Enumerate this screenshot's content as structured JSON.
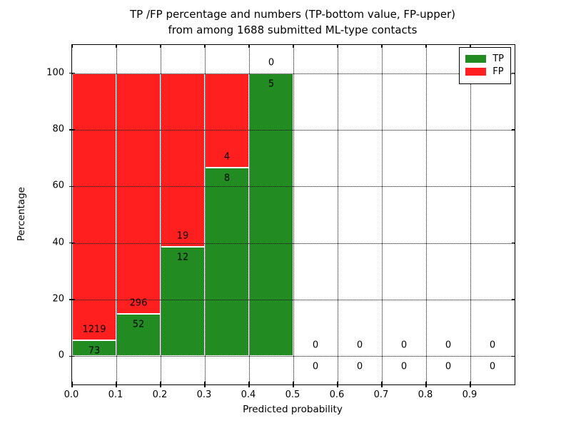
{
  "title": {
    "line1": "TP /FP percentage and numbers (TP-bottom value, FP-upper)",
    "line2": "from among 1688 submitted ML-type contacts"
  },
  "chart_data": {
    "type": "bar",
    "stacked": true,
    "title": "TP /FP percentage and numbers (TP-bottom value, FP-upper) from among 1688 submitted ML-type contacts",
    "xlabel": "Predicted probability",
    "ylabel": "Percentage",
    "xlim": [
      0.0,
      1.0
    ],
    "ylim": [
      -10,
      110
    ],
    "grid": "dotted",
    "legend_position": "upper right",
    "xticks": [
      "0.0",
      "0.1",
      "0.2",
      "0.3",
      "0.4",
      "0.5",
      "0.6",
      "0.7",
      "0.8",
      "0.9"
    ],
    "xtick_values": [
      0.0,
      0.1,
      0.2,
      0.3,
      0.4,
      0.5,
      0.6,
      0.7,
      0.8,
      0.9
    ],
    "yticks": [
      "0",
      "20",
      "40",
      "60",
      "80",
      "100"
    ],
    "ytick_values": [
      0,
      20,
      40,
      60,
      80,
      100
    ],
    "series": [
      {
        "name": "TP",
        "color": "#228b22",
        "values": [
          73,
          52,
          12,
          8,
          5,
          0,
          0,
          0,
          0,
          0
        ]
      },
      {
        "name": "FP",
        "color": "#ff1f1f",
        "values": [
          1219,
          296,
          19,
          4,
          0,
          0,
          0,
          0,
          0,
          0
        ]
      }
    ],
    "bins": [
      {
        "x0": 0.0,
        "x1": 0.1,
        "tp": 73,
        "fp": 1219,
        "tp_pct": 5.65
      },
      {
        "x0": 0.1,
        "x1": 0.2,
        "tp": 52,
        "fp": 296,
        "tp_pct": 14.94
      },
      {
        "x0": 0.2,
        "x1": 0.3,
        "tp": 12,
        "fp": 19,
        "tp_pct": 38.71
      },
      {
        "x0": 0.3,
        "x1": 0.4,
        "tp": 8,
        "fp": 4,
        "tp_pct": 66.67
      },
      {
        "x0": 0.4,
        "x1": 0.5,
        "tp": 5,
        "fp": 0,
        "tp_pct": 100.0
      },
      {
        "x0": 0.5,
        "x1": 0.6,
        "tp": 0,
        "fp": 0,
        "tp_pct": 0
      },
      {
        "x0": 0.6,
        "x1": 0.7,
        "tp": 0,
        "fp": 0,
        "tp_pct": 0
      },
      {
        "x0": 0.7,
        "x1": 0.8,
        "tp": 0,
        "fp": 0,
        "tp_pct": 0
      },
      {
        "x0": 0.8,
        "x1": 0.9,
        "tp": 0,
        "fp": 0,
        "tp_pct": 0
      },
      {
        "x0": 0.9,
        "x1": 1.0,
        "tp": 0,
        "fp": 0,
        "tp_pct": 0
      }
    ],
    "legend": [
      {
        "label": "TP",
        "color": "#228b22"
      },
      {
        "label": "FP",
        "color": "#ff1f1f"
      }
    ],
    "total_contacts": 1688
  }
}
